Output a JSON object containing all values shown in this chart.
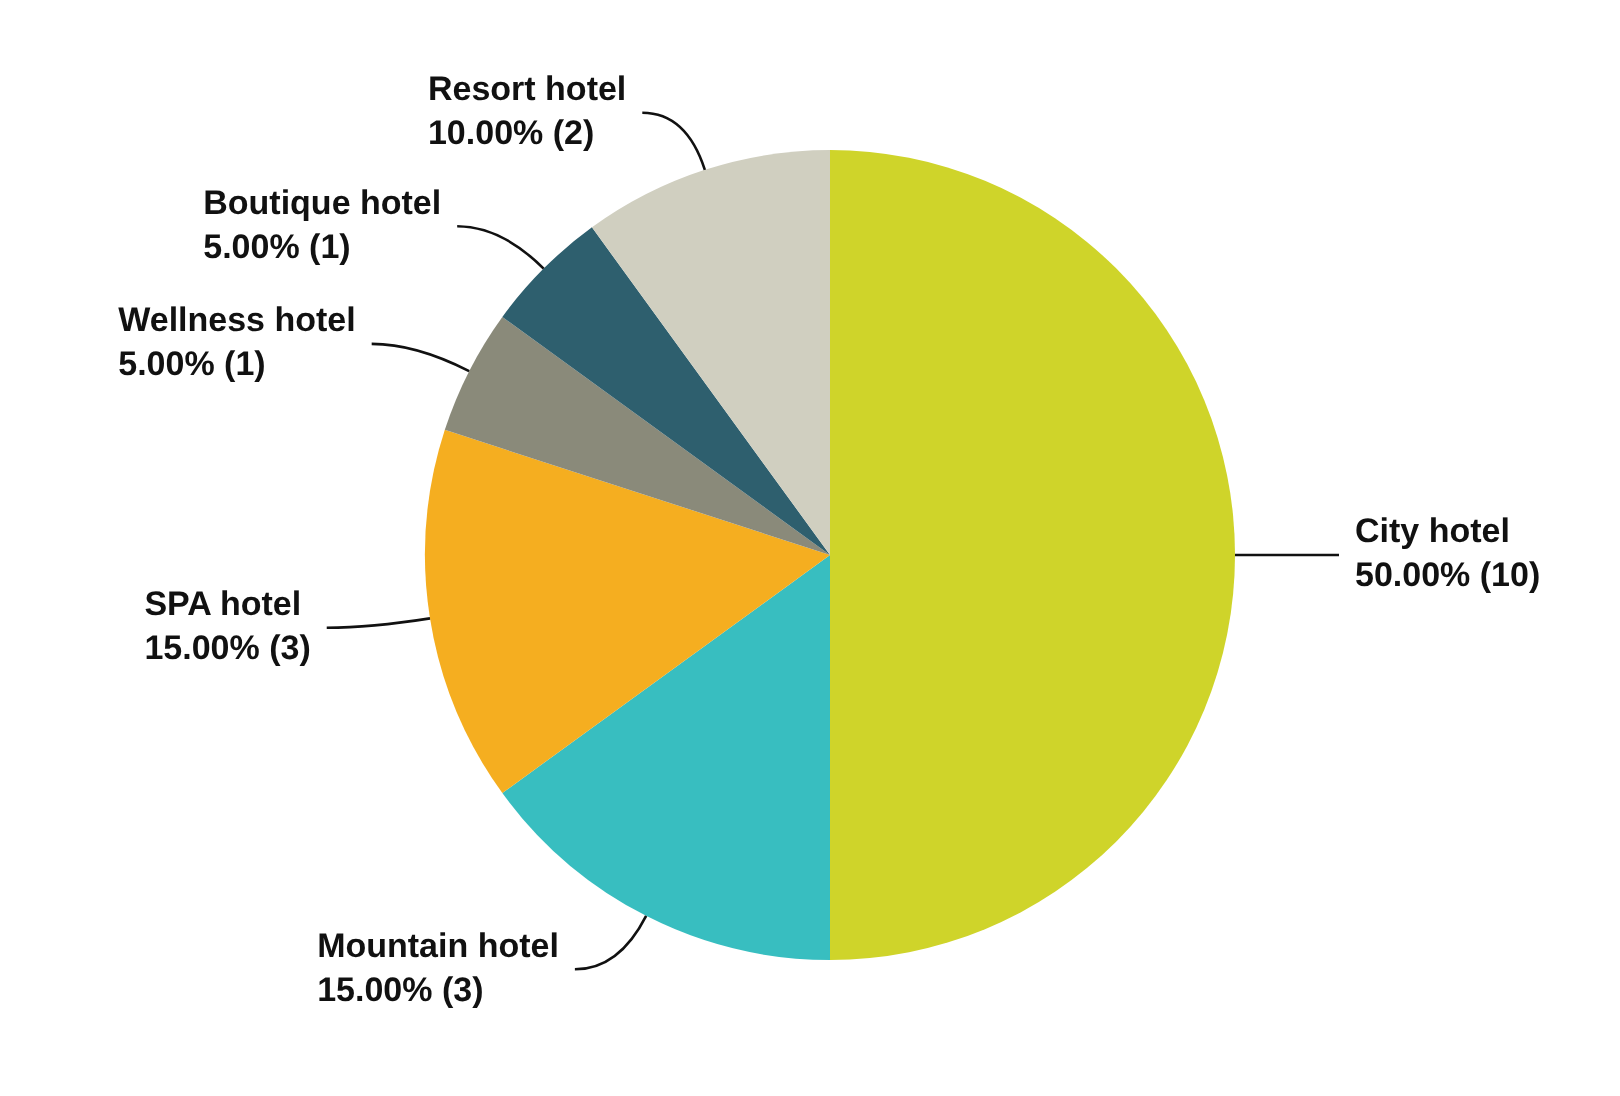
{
  "chart_data": {
    "type": "pie",
    "categories": [
      "City hotel",
      "Mountain hotel",
      "SPA hotel",
      "Wellness hotel",
      "Boutique hotel",
      "Resort hotel"
    ],
    "values": [
      10,
      3,
      3,
      1,
      1,
      2
    ],
    "value_labels": [
      "50.00% (10)",
      "15.00% (3)",
      "15.00% (3)",
      "5.00% (1)",
      "5.00% (1)",
      "10.00% (2)"
    ],
    "colors": [
      "#cfd42a",
      "#38bec0",
      "#f5ae20",
      "#8a8a7a",
      "#2e5f6e",
      "#d0cfc0"
    ],
    "legend": false
  }
}
